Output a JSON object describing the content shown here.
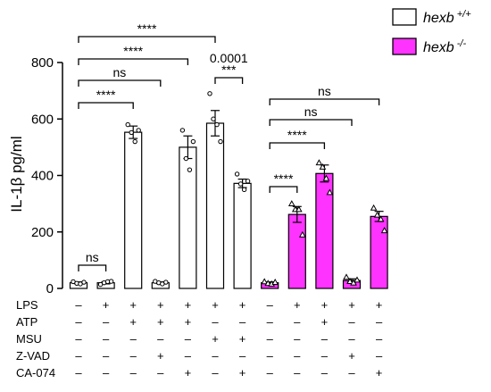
{
  "chart_data": {
    "type": "bar",
    "ylabel": "IL-1β pg/ml",
    "ylim": [
      0,
      800
    ],
    "yticks": [
      0,
      200,
      400,
      600,
      800
    ],
    "colors": {
      "wt_fill": "#ffffff",
      "ko_fill": "#ff33ff",
      "outline": "#000000"
    },
    "legend": {
      "position": "top-right",
      "items": [
        {
          "key": "wt",
          "base": "hexb",
          "sup": "+/+"
        },
        {
          "key": "ko",
          "base": "hexb",
          "sup": "-/-"
        }
      ]
    },
    "groups": [
      {
        "genotype": "wt",
        "mean": 20,
        "sem": 3,
        "points": [
          24,
          18,
          16,
          22
        ]
      },
      {
        "genotype": "wt",
        "mean": 20,
        "sem": 4,
        "points": [
          14,
          20,
          24,
          25
        ]
      },
      {
        "genotype": "wt",
        "mean": 553,
        "sem": 22,
        "points": [
          580,
          552,
          520,
          560
        ]
      },
      {
        "genotype": "wt",
        "mean": 20,
        "sem": 3,
        "points": [
          25,
          20,
          16,
          22
        ]
      },
      {
        "genotype": "wt",
        "mean": 500,
        "sem": 40,
        "points": [
          560,
          460,
          420,
          520
        ]
      },
      {
        "genotype": "wt",
        "mean": 585,
        "sem": 45,
        "points": [
          690,
          600,
          580,
          520
        ]
      },
      {
        "genotype": "wt",
        "mean": 372,
        "sem": 15,
        "points": [
          405,
          370,
          350,
          380
        ]
      },
      {
        "genotype": "ko",
        "mean": 20,
        "sem": 3,
        "points": [
          24,
          18,
          16,
          22
        ]
      },
      {
        "genotype": "ko",
        "mean": 262,
        "sem": 28,
        "points": [
          300,
          280,
          280,
          190
        ]
      },
      {
        "genotype": "ko",
        "mean": 407,
        "sem": 30,
        "points": [
          445,
          430,
          390,
          340
        ]
      },
      {
        "genotype": "ko",
        "mean": 28,
        "sem": 6,
        "points": [
          40,
          25,
          20,
          30
        ]
      },
      {
        "genotype": "ko",
        "mean": 255,
        "sem": 18,
        "points": [
          285,
          260,
          245,
          205
        ]
      }
    ],
    "comparisons": [
      {
        "from": 0,
        "to": 1,
        "label": "ns"
      },
      {
        "from": 0,
        "to": 2,
        "label": "****"
      },
      {
        "from": 0,
        "to": 3,
        "label": "ns"
      },
      {
        "from": 0,
        "to": 4,
        "label": "****"
      },
      {
        "from": 0,
        "to": 5,
        "label": "****"
      },
      {
        "from": 5,
        "to": 6,
        "label": "***",
        "extra": "0.0001"
      },
      {
        "from": 7,
        "to": 8,
        "label": "****"
      },
      {
        "from": 7,
        "to": 9,
        "label": "****"
      },
      {
        "from": 7,
        "to": 10,
        "label": "ns"
      },
      {
        "from": 7,
        "to": 11,
        "label": "ns"
      }
    ],
    "treatment_rows": [
      {
        "label": "LPS",
        "values": [
          "–",
          "+",
          "+",
          "+",
          "+",
          "+",
          "+",
          "–",
          "+",
          "+",
          "+",
          "+"
        ]
      },
      {
        "label": "ATP",
        "values": [
          "–",
          "–",
          "+",
          "+",
          "+",
          "–",
          "–",
          "–",
          "–",
          "+",
          "–",
          "–"
        ]
      },
      {
        "label": "MSU",
        "values": [
          "–",
          "–",
          "–",
          "–",
          "–",
          "+",
          "+",
          "–",
          "–",
          "–",
          "–",
          "–"
        ]
      },
      {
        "label": "Z-VAD",
        "values": [
          "–",
          "–",
          "–",
          "+",
          "–",
          "–",
          "–",
          "–",
          "–",
          "–",
          "+",
          "–"
        ]
      },
      {
        "label": "CA-074",
        "values": [
          "–",
          "–",
          "–",
          "–",
          "+",
          "–",
          "+",
          "–",
          "–",
          "–",
          "–",
          "+"
        ]
      }
    ]
  }
}
